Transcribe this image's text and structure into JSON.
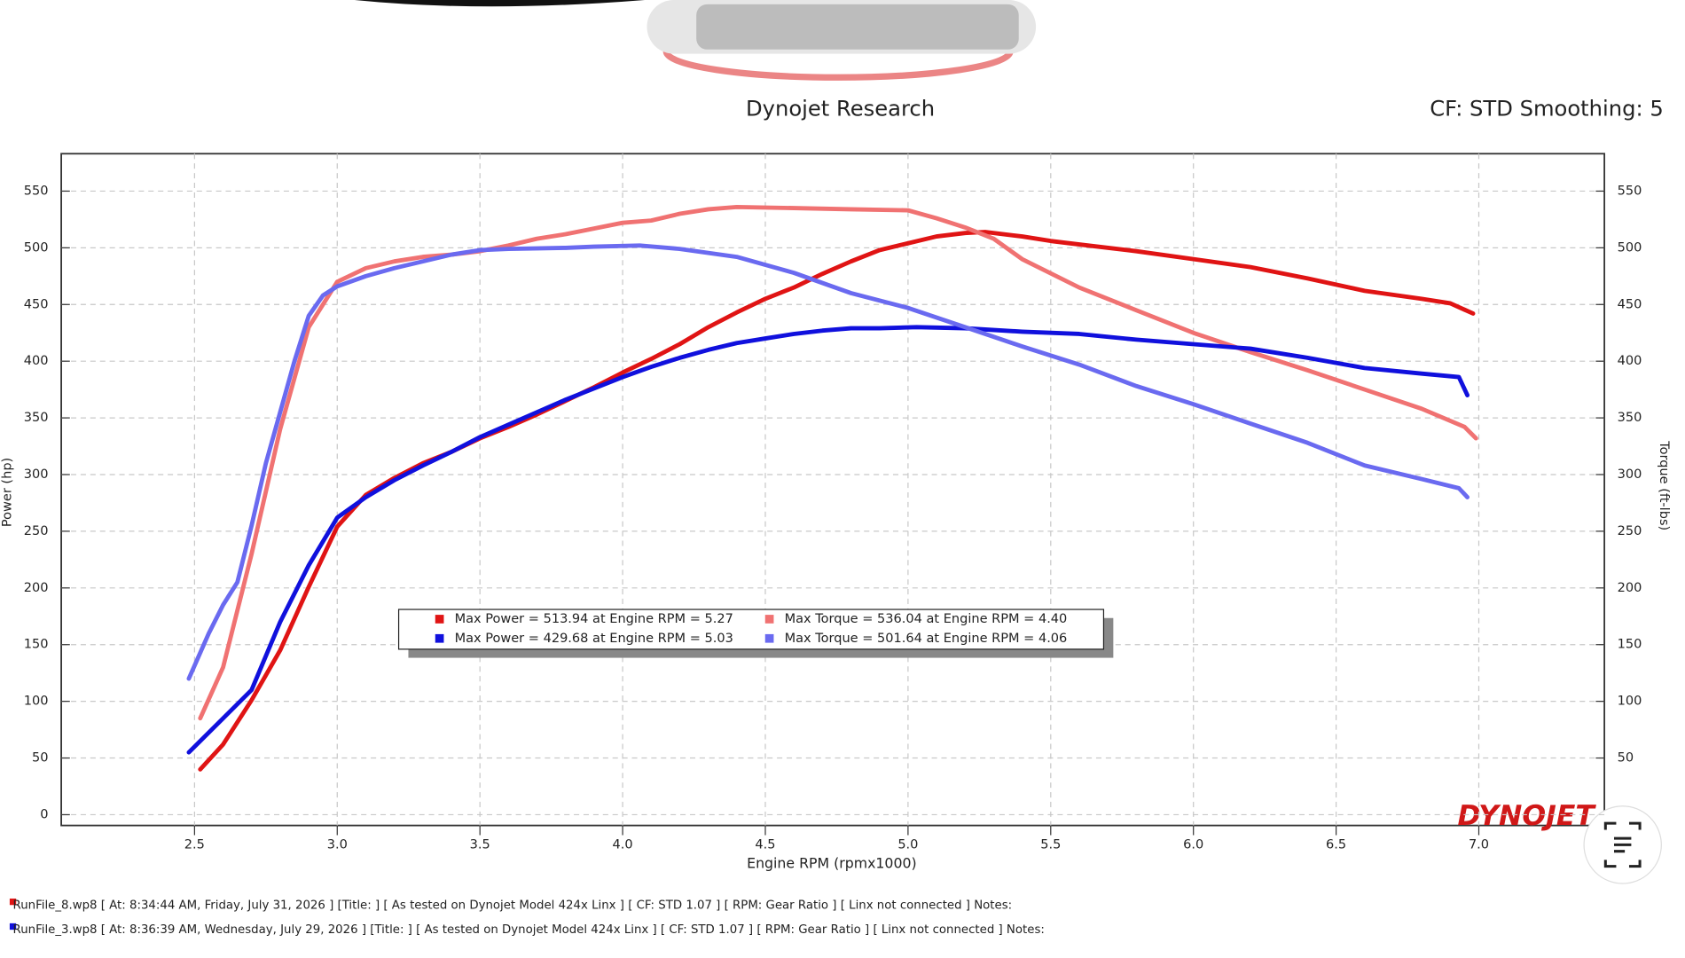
{
  "chart_data": {
    "type": "line",
    "title": "Dynojet Research",
    "subtitle": "CF: STD Smoothing: 5",
    "xlabel": "Engine RPM (rpmx1000)",
    "ylabel": "Power (hp)",
    "y2label": "Torque (ft-lbs)",
    "logo": "DYNOJET",
    "xlim": [
      2.033,
      7.44
    ],
    "ylim": [
      -9.5,
      583
    ],
    "y2lim": [
      -9.5,
      583
    ],
    "xticks": [
      2.5,
      {
        "value": 3,
        "label": "3.0"
      },
      3.5,
      {
        "value": 4,
        "label": "4.0"
      },
      4.5,
      {
        "value": 5,
        "label": "5.0"
      },
      5.5,
      {
        "value": 6,
        "label": "6.0"
      },
      6.5,
      {
        "value": 7,
        "label": "7.0"
      }
    ],
    "yticks": [
      0,
      50,
      100,
      150,
      200,
      250,
      300,
      350,
      400,
      450,
      500,
      550
    ],
    "y2ticks": [
      50,
      100,
      150,
      200,
      250,
      300,
      350,
      400,
      450,
      500,
      550
    ],
    "grid": true,
    "series": [
      {
        "name": "Max Power = 513.94 at Engine RPM = 5.27",
        "color": "#e01414",
        "x": [
          2.52,
          2.6,
          2.7,
          2.8,
          2.9,
          3.0,
          3.1,
          3.2,
          3.3,
          3.4,
          3.5,
          3.6,
          3.7,
          3.8,
          3.9,
          4.0,
          4.1,
          4.2,
          4.3,
          4.4,
          4.5,
          4.6,
          4.7,
          4.8,
          4.9,
          5.0,
          5.1,
          5.2,
          5.27,
          5.4,
          5.5,
          5.6,
          5.8,
          6.0,
          6.2,
          6.4,
          6.6,
          6.8,
          6.9,
          6.98
        ],
        "values": [
          40,
          62,
          101,
          145,
          201,
          254,
          282,
          297,
          310,
          320,
          332,
          342,
          353,
          365,
          377,
          390,
          402,
          415,
          430,
          443,
          455,
          465,
          477,
          488,
          498,
          504,
          510,
          513,
          514,
          510,
          506,
          503,
          497,
          490,
          483,
          473,
          462,
          455,
          451,
          442
        ]
      },
      {
        "name": "Max Torque = 536.04 at Engine RPM = 4.40",
        "color": "#f07272",
        "x": [
          2.52,
          2.6,
          2.7,
          2.8,
          2.9,
          3.0,
          3.1,
          3.2,
          3.3,
          3.4,
          3.5,
          3.6,
          3.7,
          3.8,
          3.9,
          4.0,
          4.1,
          4.2,
          4.3,
          4.4,
          4.6,
          4.8,
          5.0,
          5.1,
          5.2,
          5.3,
          5.4,
          5.6,
          5.8,
          6.0,
          6.2,
          6.4,
          6.6,
          6.8,
          6.95,
          6.99
        ],
        "values": [
          85,
          130,
          230,
          340,
          430,
          470,
          482,
          488,
          492,
          494,
          497,
          502,
          508,
          512,
          517,
          522,
          524,
          530,
          534,
          536,
          535,
          534,
          533,
          526,
          518,
          508,
          490,
          465,
          445,
          425,
          408,
          392,
          375,
          358,
          342,
          332
        ]
      },
      {
        "name": "Max Power = 429.68 at Engine RPM = 5.03",
        "color": "#1010dd",
        "x": [
          2.48,
          2.6,
          2.7,
          2.8,
          2.9,
          3.0,
          3.1,
          3.2,
          3.3,
          3.4,
          3.5,
          3.6,
          3.7,
          3.8,
          3.9,
          4.0,
          4.1,
          4.2,
          4.3,
          4.4,
          4.5,
          4.6,
          4.7,
          4.8,
          4.9,
          5.03,
          5.2,
          5.4,
          5.6,
          5.8,
          6.0,
          6.2,
          6.4,
          6.6,
          6.8,
          6.93,
          6.96
        ],
        "values": [
          55,
          85,
          110,
          170,
          220,
          262,
          280,
          295,
          308,
          320,
          333,
          344,
          355,
          366,
          376,
          386,
          395,
          403,
          410,
          416,
          420,
          424,
          427,
          429,
          429,
          430,
          429,
          426,
          424,
          419,
          415,
          411,
          403,
          394,
          389,
          386,
          370
        ]
      },
      {
        "name": "Max Torque = 501.64 at Engine RPM = 4.06",
        "color": "#6a6af0",
        "x": [
          2.48,
          2.55,
          2.6,
          2.65,
          2.7,
          2.75,
          2.8,
          2.85,
          2.9,
          2.95,
          3.0,
          3.1,
          3.2,
          3.3,
          3.4,
          3.5,
          3.6,
          3.8,
          3.9,
          4.06,
          4.2,
          4.4,
          4.6,
          4.8,
          5.0,
          5.2,
          5.4,
          5.6,
          5.8,
          6.0,
          6.2,
          6.4,
          6.6,
          6.8,
          6.93,
          6.96
        ],
        "values": [
          120,
          160,
          185,
          205,
          255,
          310,
          355,
          400,
          440,
          458,
          466,
          475,
          482,
          488,
          494,
          498,
          499,
          500,
          501,
          502,
          499,
          492,
          478,
          460,
          447,
          430,
          413,
          397,
          378,
          362,
          345,
          328,
          308,
          296,
          288,
          280
        ]
      }
    ],
    "footer": [
      "RunFile_8.wp8 [ At: 8:34:44 AM, Friday, July 31, 2026 ] [Title: ]  [ As tested on Dynojet Model 424x Linx ] [ CF: STD 1.07 ] [ RPM: Gear Ratio ] [ Linx not connected ] Notes:",
      "RunFile_3.wp8 [ At: 8:36:39 AM, Wednesday, July 29, 2026 ] [Title: ]  [ As tested on Dynojet Model 424x Linx ] [ CF: STD 1.07 ] [ RPM: Gear Ratio ] [ Linx not connected ] Notes:"
    ]
  }
}
